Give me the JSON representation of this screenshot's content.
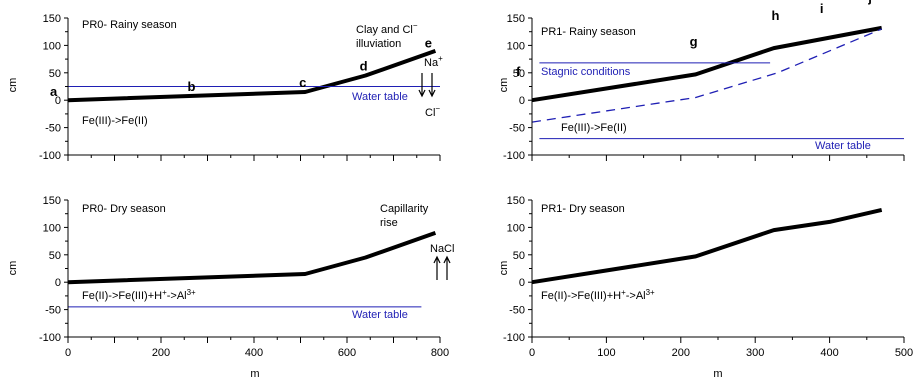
{
  "chart_data": [
    {
      "type": "line",
      "title": "PR0- Rainy season",
      "ylabel": "cm",
      "xlabel": "",
      "xlim": [
        0,
        800
      ],
      "ylim": [
        -100,
        150
      ],
      "yticks": [
        "150",
        "100",
        "50",
        "0",
        "-50",
        "-100"
      ],
      "xticks": [],
      "series": [
        {
          "values": [
            [
              0,
              0
            ],
            [
              510,
              15
            ],
            [
              640,
              45
            ],
            [
              790,
              90
            ]
          ],
          "color": "#000000"
        },
        {
          "values": [
            [
              0,
              25
            ],
            [
              800,
              25
            ]
          ],
          "color": "#1f1fb4"
        }
      ],
      "points": [
        {
          "label": "a",
          "x": 0,
          "y": 0
        },
        {
          "label": "b",
          "x": 270,
          "y": 8
        },
        {
          "label": "c",
          "x": 510,
          "y": 15
        },
        {
          "label": "d",
          "x": 640,
          "y": 45
        },
        {
          "label": "e",
          "x": 780,
          "y": 87
        }
      ],
      "annotations": {
        "process": "Fe(III)->Fe(II)",
        "water_table": "Water table",
        "illuviation_1": "Clay and Cl",
        "illuviation_1_sup": "−",
        "illuviation_2": "illuviation",
        "ion_top": "Na",
        "ion_top_sup": "+",
        "ion_bottom": "Cl",
        "ion_bottom_sup": "−"
      }
    },
    {
      "type": "line",
      "title": "PR1- Rainy season",
      "ylabel": "cm",
      "xlabel": "",
      "xlim": [
        0,
        500
      ],
      "ylim": [
        -100,
        150
      ],
      "yticks": [
        "150",
        "100",
        "50",
        "0",
        "-50",
        "-100"
      ],
      "xticks": [],
      "series": [
        {
          "values": [
            [
              0,
              0
            ],
            [
              220,
              47
            ],
            [
              325,
              95
            ],
            [
              470,
              132
            ]
          ],
          "color": "#000000"
        },
        {
          "values": [
            [
              0,
              -40
            ],
            [
              220,
              5
            ],
            [
              330,
              50
            ],
            [
              470,
              130
            ]
          ],
          "color": "#1f1fb4",
          "dashed": true
        },
        {
          "values": [
            [
              10,
              68
            ],
            [
              320,
              68
            ]
          ],
          "color": "#1f1fb4"
        },
        {
          "values": [
            [
              10,
              -70
            ],
            [
              500,
              -70
            ]
          ],
          "color": "#1f1fb4"
        }
      ],
      "points": [
        {
          "label": "f",
          "x": 0,
          "y": 50
        },
        {
          "label": "g",
          "x": 220,
          "y": 90
        },
        {
          "label": "h",
          "x": 330,
          "y": 137
        },
        {
          "label": "i",
          "x": 395,
          "y": 150
        },
        {
          "label": "j",
          "x": 460,
          "y": 170
        }
      ],
      "annotations": {
        "stagnic": "Stagnic conditions",
        "process": "Fe(III)->Fe(II)",
        "water_table": "Water table"
      }
    },
    {
      "type": "line",
      "title": "PR0- Dry season",
      "ylabel": "cm",
      "xlabel": "m",
      "xlim": [
        0,
        800
      ],
      "ylim": [
        -100,
        150
      ],
      "yticks": [
        "150",
        "100",
        "50",
        "0",
        "-50",
        "-100"
      ],
      "xticks": [
        "0",
        "200",
        "400",
        "600",
        "800"
      ],
      "series": [
        {
          "values": [
            [
              0,
              0
            ],
            [
              510,
              15
            ],
            [
              640,
              45
            ],
            [
              790,
              90
            ]
          ],
          "color": "#000000"
        },
        {
          "values": [
            [
              0,
              -45
            ],
            [
              760,
              -45
            ]
          ],
          "color": "#1f1fb4"
        }
      ],
      "annotations": {
        "process": "Fe(II)->Fe(III)+H",
        "process_sup1": "+",
        "process_mid": "->Al",
        "process_sup2": "3+",
        "water_table": "Water table",
        "rise_1": "Capillarity",
        "rise_2": "rise",
        "ion": "NaCl"
      }
    },
    {
      "type": "line",
      "title": "PR1- Dry season",
      "ylabel": "cm",
      "xlabel": "m",
      "xlim": [
        0,
        500
      ],
      "ylim": [
        -100,
        150
      ],
      "yticks": [
        "150",
        "100",
        "50",
        "0",
        "-50",
        "-100"
      ],
      "xticks": [
        "0",
        "100",
        "200",
        "300",
        "400",
        "500"
      ],
      "series": [
        {
          "values": [
            [
              0,
              0
            ],
            [
              220,
              47
            ],
            [
              325,
              95
            ],
            [
              400,
              110
            ],
            [
              470,
              132
            ]
          ],
          "color": "#000000"
        }
      ],
      "annotations": {
        "process": "Fe(II)->Fe(III)+H",
        "process_sup1": "+",
        "process_mid": "->Al",
        "process_sup2": "3+"
      }
    }
  ]
}
